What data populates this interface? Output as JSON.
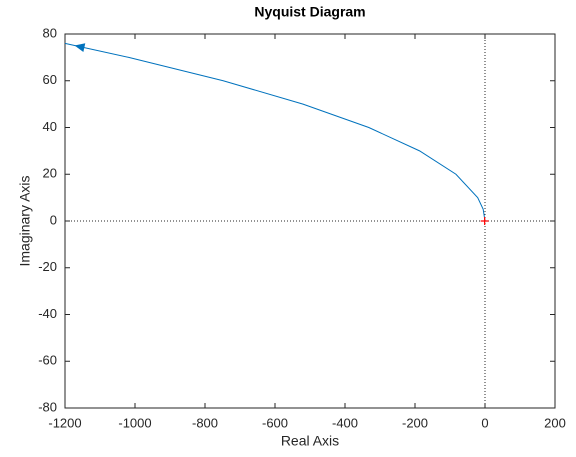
{
  "chart_data": {
    "type": "line",
    "title": "Nyquist Diagram",
    "x_label": "Real Axis",
    "y_label": "Imaginary Axis",
    "series": [
      {
        "color": "#0072bd",
        "x": [
          0,
          -5.2,
          -20.8,
          -83,
          -187,
          -332,
          -520,
          -748,
          -1018,
          -1200
        ],
        "values": [
          0,
          5,
          10,
          20,
          30,
          40,
          50,
          60,
          70,
          76
        ]
      }
    ],
    "critical_point": {
      "x": -1,
      "y": 0,
      "color": "#ff0000"
    },
    "xlim": [
      -1200,
      200
    ],
    "xticks": [
      -1200,
      -1000,
      -800,
      -600,
      -400,
      -200,
      0,
      200
    ],
    "ylim": [
      -80,
      80
    ],
    "yticks": [
      -80,
      -60,
      -40,
      -20,
      0,
      20,
      40,
      60,
      80
    ],
    "grid": false
  }
}
